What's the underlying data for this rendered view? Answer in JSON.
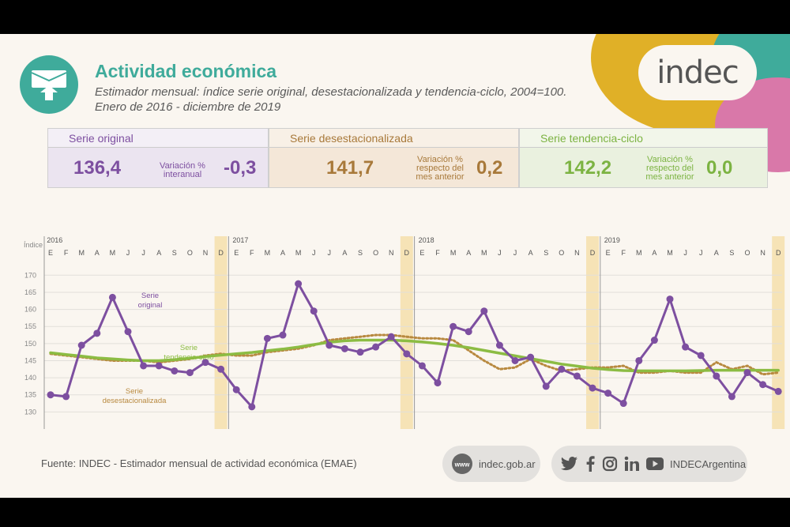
{
  "header": {
    "title": "Actividad económica",
    "subtitle": "Estimador mensual: índice serie original, desestacionalizada y tendencia-ciclo, 2004=100.",
    "period": "Enero de 2016 - diciembre de 2019",
    "logo": "indec"
  },
  "panels": [
    {
      "title": "Serie original",
      "value": "136,4",
      "label_line1": "Variación %",
      "label_line2": "interanual",
      "variation": "-0,3",
      "color": "#7d4fa0",
      "bg": "#ebe4f0",
      "head_bg": "#f3eff6"
    },
    {
      "title": "Serie desestacionalizada",
      "value": "141,7",
      "label_line1": "Variación %",
      "label_line2": "respecto del",
      "label_line3": "mes anterior",
      "variation": "0,2",
      "color": "#a8793a",
      "bg": "#f4e7d8",
      "head_bg": "#f8f0e6"
    },
    {
      "title": "Serie tendencia-ciclo",
      "value": "142,2",
      "label_line1": "Variación %",
      "label_line2": "respecto del",
      "label_line3": "mes anterior",
      "variation": "0,0",
      "color": "#7cb342",
      "bg": "#eaf1df",
      "head_bg": "#f2f6ea"
    }
  ],
  "chart_data": {
    "type": "line",
    "ylabel": "Índice",
    "ylim": [
      125,
      174
    ],
    "y_ticks": [
      130,
      135,
      140,
      145,
      150,
      155,
      160,
      165,
      170
    ],
    "years": [
      "2016",
      "2017",
      "2018",
      "2019"
    ],
    "month_labels": [
      "E",
      "F",
      "M",
      "A",
      "M",
      "J",
      "J",
      "A",
      "S",
      "O",
      "N",
      "D"
    ],
    "highlight_month": "D",
    "series": [
      {
        "name": "Serie original",
        "color": "#7d4fa0",
        "values": [
          135.0,
          134.5,
          149.5,
          153.0,
          163.5,
          153.5,
          143.5,
          143.5,
          142.0,
          141.5,
          144.5,
          142.5,
          136.5,
          131.5,
          151.5,
          152.5,
          167.5,
          159.5,
          149.5,
          148.5,
          147.5,
          149.0,
          152.0,
          147.0,
          143.5,
          138.5,
          155.0,
          153.5,
          159.5,
          149.5,
          145.0,
          146.0,
          137.5,
          142.5,
          140.5,
          137.0,
          135.5,
          132.5,
          145.0,
          151.0,
          163.0,
          149.0,
          146.5,
          140.5,
          134.5,
          141.5,
          138.0,
          136.0
        ]
      },
      {
        "name": "Serie desestacionalizada",
        "color": "#b8893f",
        "values": [
          147.0,
          146.5,
          146.0,
          145.5,
          145.0,
          145.0,
          145.0,
          144.5,
          145.0,
          145.5,
          146.5,
          147.0,
          146.5,
          146.5,
          147.5,
          148.0,
          148.5,
          149.5,
          151.0,
          151.5,
          152.0,
          152.5,
          152.5,
          152.0,
          151.5,
          151.5,
          151.0,
          148.0,
          145.0,
          142.5,
          143.0,
          145.5,
          143.5,
          142.0,
          142.5,
          143.0,
          143.0,
          143.5,
          141.5,
          141.5,
          142.0,
          141.5,
          141.5,
          144.5,
          142.5,
          143.5,
          141.0,
          141.5
        ]
      },
      {
        "name": "Serie tendencia-ciclo",
        "color": "#8cbc43",
        "values": [
          147.3,
          146.8,
          146.3,
          145.8,
          145.5,
          145.2,
          145.0,
          145.0,
          145.3,
          145.7,
          146.2,
          146.6,
          147.0,
          147.4,
          147.9,
          148.4,
          149.0,
          149.7,
          150.4,
          150.8,
          151.0,
          151.0,
          151.0,
          150.8,
          150.5,
          150.0,
          149.5,
          148.8,
          148.0,
          147.2,
          146.4,
          145.6,
          144.8,
          144.0,
          143.4,
          142.8,
          142.4,
          142.1,
          142.0,
          142.0,
          142.0,
          142.0,
          142.1,
          142.2,
          142.2,
          142.2,
          142.2,
          142.2
        ]
      }
    ],
    "annotations": [
      {
        "text": "Serie",
        "series": "Serie original"
      },
      {
        "text": "original",
        "series": "Serie original"
      },
      {
        "text": "Serie",
        "series": "Serie tendencia-ciclo"
      },
      {
        "text": "tendencia-ciclo",
        "series": "Serie tendencia-ciclo"
      },
      {
        "text": "Serie",
        "series": "Serie desestacionalizada"
      },
      {
        "text": "desestacionalizada",
        "series": "Serie desestacionalizada"
      }
    ]
  },
  "footer": {
    "source": "Fuente: INDEC - Estimador mensual de actividad económica (EMAE)",
    "web_icon": "www-icon",
    "web": "indec.gob.ar",
    "social_icons": [
      "twitter-icon",
      "facebook-icon",
      "instagram-icon",
      "linkedin-icon",
      "youtube-icon"
    ],
    "social_handle": "INDECArgentina"
  }
}
